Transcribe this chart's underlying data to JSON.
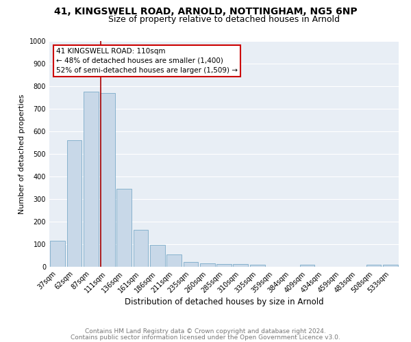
{
  "title1": "41, KINGSWELL ROAD, ARNOLD, NOTTINGHAM, NG5 6NP",
  "title2": "Size of property relative to detached houses in Arnold",
  "xlabel": "Distribution of detached houses by size in Arnold",
  "ylabel": "Number of detached properties",
  "categories": [
    "37sqm",
    "62sqm",
    "87sqm",
    "111sqm",
    "136sqm",
    "161sqm",
    "186sqm",
    "211sqm",
    "235sqm",
    "260sqm",
    "285sqm",
    "310sqm",
    "335sqm",
    "359sqm",
    "384sqm",
    "409sqm",
    "434sqm",
    "459sqm",
    "483sqm",
    "508sqm",
    "533sqm"
  ],
  "values": [
    115,
    560,
    775,
    770,
    345,
    165,
    98,
    55,
    20,
    15,
    12,
    12,
    10,
    0,
    0,
    10,
    0,
    0,
    0,
    10,
    10
  ],
  "bar_color": "#c8d8e8",
  "bar_edge_color": "#7aaac8",
  "vline_x": 2.57,
  "vline_color": "#aa0000",
  "annotation_text": "41 KINGSWELL ROAD: 110sqm\n← 48% of detached houses are smaller (1,400)\n52% of semi-detached houses are larger (1,509) →",
  "annotation_box_color": "#ffffff",
  "annotation_box_edge": "#cc0000",
  "ylim": [
    0,
    1000
  ],
  "yticks": [
    0,
    100,
    200,
    300,
    400,
    500,
    600,
    700,
    800,
    900,
    1000
  ],
  "fig_bg_color": "#ffffff",
  "plot_bg_color": "#e8eef5",
  "footer_line1": "Contains HM Land Registry data © Crown copyright and database right 2024.",
  "footer_line2": "Contains public sector information licensed under the Open Government Licence v3.0.",
  "title1_fontsize": 10,
  "title2_fontsize": 9,
  "xlabel_fontsize": 8.5,
  "ylabel_fontsize": 8,
  "tick_fontsize": 7,
  "annotation_fontsize": 7.5,
  "footer_fontsize": 6.5
}
